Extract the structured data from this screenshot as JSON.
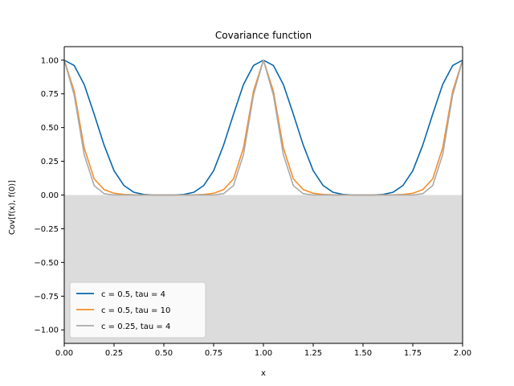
{
  "chart_data": {
    "type": "line",
    "title": "Covariance function",
    "xlabel": "x",
    "ylabel": "Cov[f(x), f(0)]",
    "xlim": [
      0,
      2
    ],
    "ylim": [
      -1.1,
      1.1
    ],
    "xticks": [
      0.0,
      0.25,
      0.5,
      0.75,
      1.0,
      1.25,
      1.5,
      1.75,
      2.0
    ],
    "xtick_labels": [
      "0.00",
      "0.25",
      "0.50",
      "0.75",
      "1.00",
      "1.25",
      "1.50",
      "1.75",
      "2.00"
    ],
    "yticks": [
      -1.0,
      -0.75,
      -0.5,
      -0.25,
      0.0,
      0.25,
      0.5,
      0.75,
      1.0
    ],
    "ytick_labels": [
      "−1.00",
      "−0.75",
      "−0.50",
      "−0.25",
      "0.00",
      "0.25",
      "0.50",
      "0.75",
      "1.00"
    ],
    "shaded_region": {
      "y_from": -1.1,
      "y_to": 0.0,
      "color": "#dcdcdc"
    },
    "grid": false,
    "legend_position": "lower-left",
    "x": [
      0.0,
      0.05,
      0.1,
      0.15,
      0.2,
      0.25,
      0.3,
      0.35,
      0.4,
      0.45,
      0.5,
      0.55,
      0.6,
      0.65,
      0.7,
      0.75,
      0.8,
      0.85,
      0.9,
      0.95,
      1.0,
      1.05,
      1.1,
      1.15,
      1.2,
      1.25,
      1.3,
      1.35,
      1.4,
      1.45,
      1.5,
      1.55,
      1.6,
      1.65,
      1.7,
      1.75,
      1.8,
      1.85,
      1.9,
      1.95,
      2.0
    ],
    "series": [
      {
        "name": "c = 0.5, tau = 4",
        "color": "#0868ac",
        "values": [
          1.0,
          0.96,
          0.82,
          0.6,
          0.37,
          0.18,
          0.07,
          0.02,
          0.004,
          0.0,
          0.0,
          0.0,
          0.004,
          0.02,
          0.07,
          0.18,
          0.37,
          0.6,
          0.82,
          0.96,
          1.0,
          0.96,
          0.82,
          0.6,
          0.37,
          0.18,
          0.07,
          0.02,
          0.004,
          0.0,
          0.0,
          0.0,
          0.004,
          0.02,
          0.07,
          0.18,
          0.37,
          0.6,
          0.82,
          0.96,
          1.0
        ]
      },
      {
        "name": "c = 0.5, tau = 10",
        "color": "#f28e2b",
        "values": [
          1.0,
          0.77,
          0.35,
          0.12,
          0.04,
          0.013,
          0.004,
          0.001,
          0.0,
          0.0,
          0.0,
          0.0,
          0.0,
          0.001,
          0.004,
          0.013,
          0.04,
          0.12,
          0.35,
          0.77,
          1.0,
          0.77,
          0.35,
          0.12,
          0.04,
          0.013,
          0.004,
          0.001,
          0.0,
          0.0,
          0.0,
          0.0,
          0.0,
          0.001,
          0.004,
          0.013,
          0.04,
          0.12,
          0.35,
          0.77,
          1.0
        ]
      },
      {
        "name": "c = 0.25, tau = 4",
        "color": "#aaaaaa",
        "values": [
          1.0,
          0.74,
          0.3,
          0.07,
          0.01,
          0.0,
          0.0,
          0.0,
          0.0,
          0.0,
          0.0,
          0.0,
          0.0,
          0.0,
          0.0,
          0.0,
          0.01,
          0.07,
          0.3,
          0.74,
          1.0,
          0.74,
          0.3,
          0.07,
          0.01,
          0.0,
          0.0,
          0.0,
          0.0,
          0.0,
          0.0,
          0.0,
          0.0,
          0.0,
          0.0,
          0.0,
          0.01,
          0.07,
          0.3,
          0.74,
          1.0
        ]
      }
    ]
  }
}
